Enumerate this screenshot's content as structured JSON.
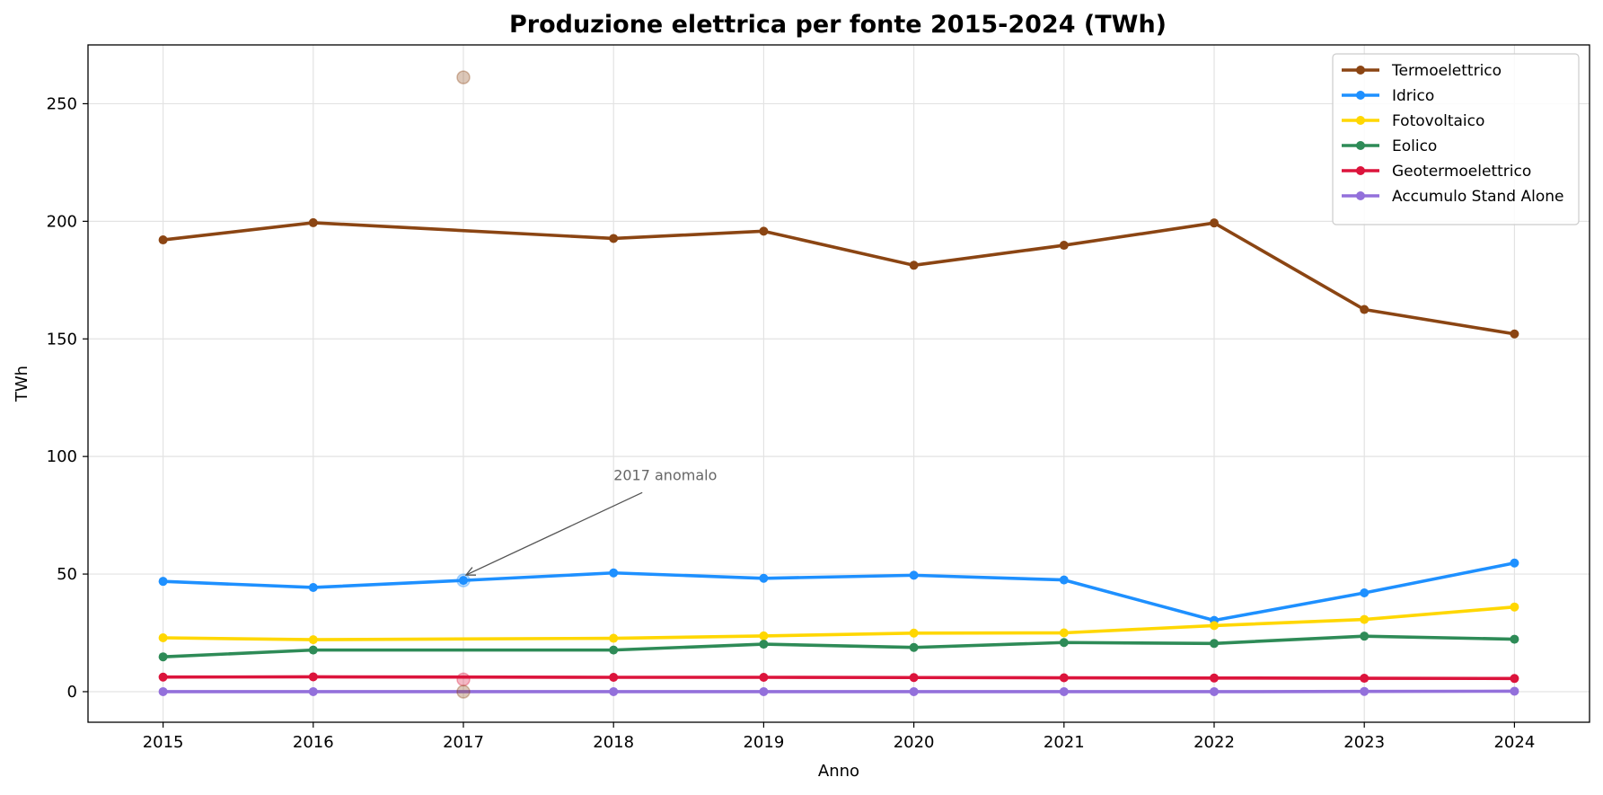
{
  "chart_data": {
    "type": "line",
    "title": "Produzione elettrica per fonte 2015-2024 (TWh)",
    "xlabel": "Anno",
    "ylabel": "TWh",
    "x": [
      2015,
      2016,
      2017,
      2018,
      2019,
      2020,
      2021,
      2022,
      2023,
      2024
    ],
    "xlim": [
      2014.5,
      2024.5
    ],
    "ylim": [
      -13,
      275
    ],
    "yticks": [
      0,
      50,
      100,
      150,
      200,
      250
    ],
    "grid": true,
    "legend_position": "top-right",
    "series": [
      {
        "name": "Termoelettrico",
        "color": "#8B4513",
        "values": [
          192.1,
          199.4,
          null,
          192.7,
          195.8,
          181.3,
          189.8,
          199.3,
          162.5,
          152.1
        ]
      },
      {
        "name": "Idrico",
        "color": "#1E90FF",
        "values": [
          46.9,
          44.3,
          47.3,
          50.5,
          48.2,
          49.5,
          47.5,
          30.3,
          42.0,
          54.7
        ]
      },
      {
        "name": "Fotovoltaico",
        "color": "#FFD700",
        "values": [
          22.9,
          22.1,
          null,
          22.7,
          23.7,
          24.9,
          25.0,
          28.1,
          30.7,
          36.0
        ]
      },
      {
        "name": "Eolico",
        "color": "#2E8B57",
        "values": [
          14.8,
          17.7,
          null,
          17.7,
          20.2,
          18.8,
          20.9,
          20.5,
          23.6,
          22.3
        ]
      },
      {
        "name": "Geotermoelettrico",
        "color": "#DC143C",
        "values": [
          6.2,
          6.3,
          null,
          6.1,
          6.1,
          6.0,
          5.9,
          5.8,
          5.7,
          5.6
        ]
      },
      {
        "name": "Accumulo Stand Alone",
        "color": "#9370DB",
        "values": [
          0.0,
          0.0,
          null,
          0.0,
          0.0,
          0.0,
          0.0,
          0.0,
          0.1,
          0.2
        ]
      }
    ],
    "anomalies_2017": [
      {
        "series": "Termoelettrico",
        "color": "#8B4513",
        "x": 2017,
        "y": 261.2
      },
      {
        "series": "Idrico",
        "color": "#1E90FF",
        "x": 2017,
        "y": 47.3
      },
      {
        "series": "Geotermoelettrico",
        "color": "#DC143C",
        "x": 2017,
        "y": 5.2
      },
      {
        "series": "Accumulo Stand Alone",
        "color": "#8B4513",
        "x": 2017,
        "y": 0.0
      }
    ],
    "annotation": {
      "text": "2017 anomalo",
      "x": 2017,
      "y": 50,
      "text_x": 2018,
      "text_y": 90
    }
  }
}
